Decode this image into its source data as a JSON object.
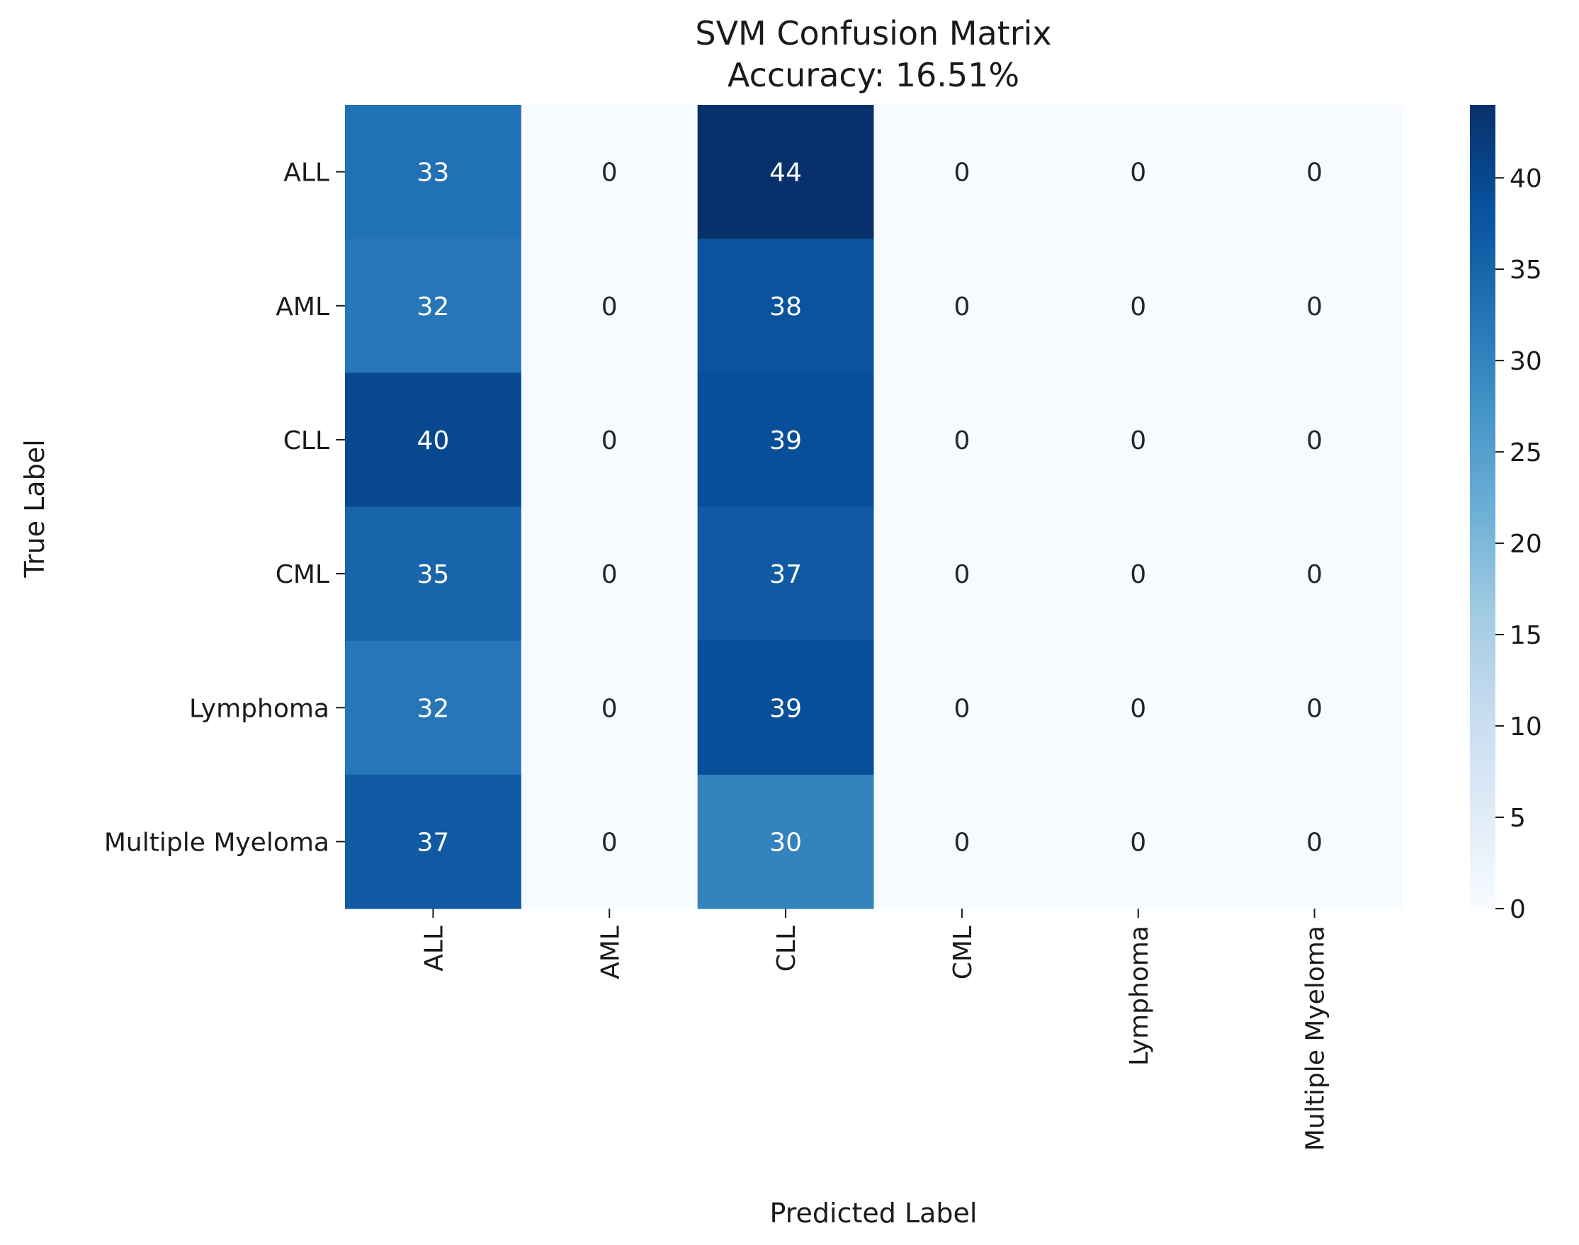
{
  "chart_data": {
    "type": "heatmap",
    "title": "SVM Confusion Matrix",
    "subtitle": "Accuracy: 16.51%",
    "xlabel": "Predicted Label",
    "ylabel": "True Label",
    "x_categories": [
      "ALL",
      "AML",
      "CLL",
      "CML",
      "Lymphoma",
      "Multiple Myeloma"
    ],
    "y_categories": [
      "ALL",
      "AML",
      "CLL",
      "CML",
      "Lymphoma",
      "Multiple Myeloma"
    ],
    "values": [
      [
        33,
        0,
        44,
        0,
        0,
        0
      ],
      [
        32,
        0,
        38,
        0,
        0,
        0
      ],
      [
        40,
        0,
        39,
        0,
        0,
        0
      ],
      [
        35,
        0,
        37,
        0,
        0,
        0
      ],
      [
        32,
        0,
        39,
        0,
        0,
        0
      ],
      [
        37,
        0,
        30,
        0,
        0,
        0
      ]
    ],
    "colorbar": {
      "min": 0,
      "max": 44,
      "ticks": [
        0,
        5,
        10,
        15,
        20,
        25,
        30,
        35,
        40
      ],
      "colormap": "Blues"
    },
    "annotations": true,
    "grid": false
  }
}
